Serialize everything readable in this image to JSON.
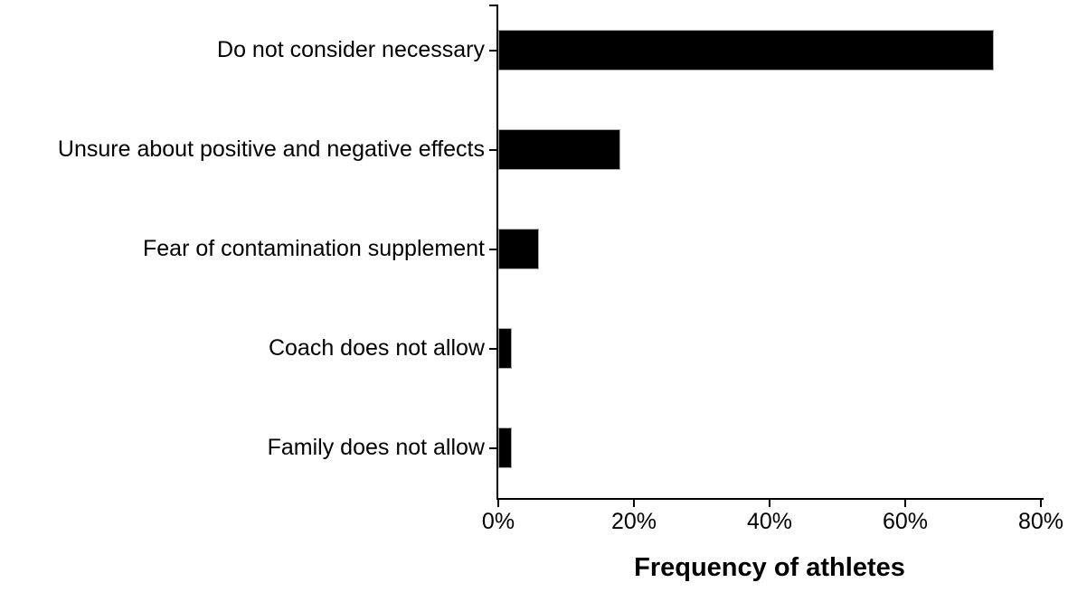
{
  "chart_data": {
    "type": "bar",
    "orientation": "horizontal",
    "title": "",
    "xlabel": "Frequency of athletes",
    "ylabel": "",
    "categories": [
      "Do not consider necessary",
      "Unsure about positive and negative effects",
      "Fear of contamination supplement",
      "Coach does not allow",
      "Family does not allow"
    ],
    "values": [
      73,
      18,
      6,
      2,
      2
    ],
    "unit": "%",
    "xlim": [
      0,
      80
    ],
    "x_ticks": [
      "0%",
      "20%",
      "40%",
      "60%",
      "80%"
    ],
    "x_tick_values": [
      0,
      20,
      40,
      60,
      80
    ],
    "bar_color": "#000000",
    "grid": false,
    "legend": false
  }
}
